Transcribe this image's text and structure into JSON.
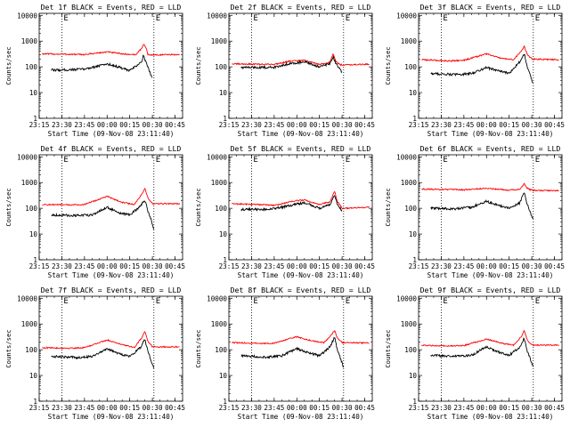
{
  "chart_data": [
    {
      "type": "line",
      "title": "Det 1f BLACK = Events, RED = LLD",
      "xlabel": "Start Time (09-Nov-08 23:11:40)",
      "ylabel": "Counts/sec",
      "x_ticks": [
        "23:15",
        "23:30",
        "23:45",
        "00:00",
        "00:15",
        "00:30",
        "00:45"
      ],
      "y_ticks": [
        "1",
        "10",
        "100",
        "1000",
        "10000"
      ],
      "y_scale": "log",
      "ylim": [
        1,
        12000
      ],
      "xlim": [
        "23:15",
        "00:50"
      ],
      "markers": [
        "23:30",
        "00:31"
      ],
      "corner_labels": [
        "E",
        "E"
      ],
      "series": [
        {
          "color": "#ff0000",
          "start": "23:17",
          "end": "00:48",
          "x": [
            "23:17",
            "23:45",
            "00:00",
            "00:12",
            "00:19",
            "00:23",
            "00:24",
            "00:26",
            "00:27",
            "00:30",
            "00:48"
          ],
          "y": [
            320,
            300,
            380,
            310,
            300,
            520,
            780,
            520,
            300,
            290,
            300
          ]
        },
        {
          "color": "#000000",
          "start": "23:23",
          "end": "00:30",
          "x": [
            "23:23",
            "23:30",
            "23:45",
            "00:00",
            "00:05",
            "00:15",
            "00:23",
            "00:24",
            "00:26",
            "00:28",
            "00:29",
            "00:30"
          ],
          "y": [
            75,
            75,
            82,
            130,
            110,
            70,
            160,
            270,
            140,
            70,
            50,
            40
          ]
        }
      ]
    },
    {
      "type": "line",
      "title": "Det 2f BLACK = Events, RED = LLD",
      "xlabel": "Start Time (09-Nov-08 23:11:40)",
      "ylabel": "Counts/sec",
      "x_ticks": [
        "23:15",
        "23:30",
        "23:45",
        "00:00",
        "00:15",
        "00:30",
        "00:45"
      ],
      "y_ticks": [
        "1",
        "10",
        "100",
        "1000",
        "10000"
      ],
      "y_scale": "log",
      "ylim": [
        1,
        12000
      ],
      "xlim": [
        "23:15",
        "00:50"
      ],
      "markers": [
        "23:30",
        "00:31"
      ],
      "corner_labels": [
        "E",
        "E"
      ],
      "series": [
        {
          "color": "#ff0000",
          "start": "23:17",
          "end": "00:48",
          "x": [
            "23:17",
            "23:45",
            "23:55",
            "00:05",
            "00:15",
            "00:22",
            "00:24",
            "00:26",
            "00:29",
            "00:48"
          ],
          "y": [
            130,
            125,
            165,
            180,
            125,
            150,
            320,
            160,
            120,
            125
          ]
        },
        {
          "color": "#000000",
          "start": "23:23",
          "end": "00:30",
          "x": [
            "23:23",
            "23:45",
            "23:55",
            "00:05",
            "00:15",
            "00:22",
            "00:24",
            "00:26",
            "00:28",
            "00:30"
          ],
          "y": [
            95,
            95,
            135,
            155,
            100,
            130,
            260,
            130,
            90,
            60
          ]
        }
      ]
    },
    {
      "type": "line",
      "title": "Det 3f BLACK = Events, RED = LLD",
      "xlabel": "Start Time (09-Nov-08 23:11:40)",
      "ylabel": "Counts/sec",
      "x_ticks": [
        "23:15",
        "23:30",
        "23:45",
        "00:00",
        "00:15",
        "00:30",
        "00:45"
      ],
      "y_ticks": [
        "1",
        "10",
        "100",
        "1000",
        "10000"
      ],
      "y_scale": "log",
      "ylim": [
        1,
        12000
      ],
      "xlim": [
        "23:15",
        "00:50"
      ],
      "markers": [
        "23:30",
        "00:31"
      ],
      "corner_labels": [
        "E",
        "E"
      ],
      "series": [
        {
          "color": "#ff0000",
          "start": "23:17",
          "end": "00:48",
          "x": [
            "23:17",
            "23:35",
            "23:45",
            "00:00",
            "00:10",
            "00:18",
            "00:23",
            "00:25",
            "00:27",
            "00:30",
            "00:48"
          ],
          "y": [
            190,
            170,
            180,
            320,
            210,
            190,
            420,
            620,
            300,
            200,
            190
          ]
        },
        {
          "color": "#000000",
          "start": "23:23",
          "end": "00:31",
          "x": [
            "23:23",
            "23:40",
            "23:50",
            "00:00",
            "00:08",
            "00:15",
            "00:22",
            "00:25",
            "00:27",
            "00:29",
            "00:31"
          ],
          "y": [
            55,
            50,
            55,
            95,
            70,
            55,
            160,
            330,
            100,
            50,
            20
          ]
        }
      ]
    },
    {
      "type": "line",
      "title": "Det 4f BLACK = Events, RED = LLD",
      "xlabel": "Start Time (09-Nov-08 23:11:40)",
      "ylabel": "Counts/sec",
      "x_ticks": [
        "23:15",
        "23:30",
        "23:45",
        "00:00",
        "00:15",
        "00:30",
        "00:45"
      ],
      "y_ticks": [
        "1",
        "10",
        "100",
        "1000",
        "10000"
      ],
      "y_scale": "log",
      "ylim": [
        1,
        12000
      ],
      "xlim": [
        "23:15",
        "00:50"
      ],
      "markers": [
        "23:30",
        "00:31"
      ],
      "corner_labels": [
        "E",
        "E"
      ],
      "series": [
        {
          "color": "#ff0000",
          "start": "23:17",
          "end": "00:48",
          "x": [
            "23:17",
            "23:35",
            "23:45",
            "00:00",
            "00:10",
            "00:18",
            "00:23",
            "00:25",
            "00:27",
            "00:30",
            "00:48"
          ],
          "y": [
            140,
            135,
            140,
            290,
            170,
            140,
            350,
            620,
            250,
            150,
            150
          ]
        },
        {
          "color": "#000000",
          "start": "23:23",
          "end": "00:31",
          "x": [
            "23:23",
            "23:40",
            "23:50",
            "00:00",
            "00:08",
            "00:15",
            "00:22",
            "00:25",
            "00:27",
            "00:29",
            "00:31"
          ],
          "y": [
            55,
            52,
            55,
            110,
            65,
            55,
            120,
            210,
            80,
            40,
            15
          ]
        }
      ]
    },
    {
      "type": "line",
      "title": "Det 5f BLACK = Events, RED = LLD",
      "xlabel": "Start Time (09-Nov-08 23:11:40)",
      "ylabel": "Counts/sec",
      "x_ticks": [
        "23:15",
        "23:30",
        "23:45",
        "00:00",
        "00:15",
        "00:30",
        "00:45"
      ],
      "y_ticks": [
        "1",
        "10",
        "100",
        "1000",
        "10000"
      ],
      "y_scale": "log",
      "ylim": [
        1,
        12000
      ],
      "xlim": [
        "23:15",
        "00:50"
      ],
      "markers": [
        "23:30",
        "00:31"
      ],
      "corner_labels": [
        "E",
        "E"
      ],
      "series": [
        {
          "color": "#ff0000",
          "start": "23:17",
          "end": "00:48",
          "x": [
            "23:17",
            "23:35",
            "23:45",
            "00:00",
            "00:05",
            "00:15",
            "00:22",
            "00:25",
            "00:27",
            "00:30",
            "00:48"
          ],
          "y": [
            150,
            140,
            130,
            200,
            210,
            140,
            180,
            450,
            180,
            100,
            110
          ]
        },
        {
          "color": "#000000",
          "start": "23:23",
          "end": "00:30",
          "x": [
            "23:23",
            "23:35",
            "23:45",
            "00:00",
            "00:05",
            "00:15",
            "00:22",
            "00:25",
            "00:27",
            "00:30"
          ],
          "y": [
            90,
            90,
            95,
            145,
            165,
            100,
            135,
            340,
            130,
            80
          ]
        }
      ]
    },
    {
      "type": "line",
      "title": "Det 6f BLACK = Events, RED = LLD",
      "xlabel": "Start Time (09-Nov-08 23:11:40)",
      "ylabel": "Counts/sec",
      "x_ticks": [
        "23:15",
        "23:30",
        "23:45",
        "00:00",
        "00:15",
        "00:30",
        "00:45"
      ],
      "y_ticks": [
        "1",
        "10",
        "100",
        "1000",
        "10000"
      ],
      "y_scale": "log",
      "ylim": [
        1,
        12000
      ],
      "xlim": [
        "23:15",
        "00:50"
      ],
      "markers": [
        "23:30",
        "00:31"
      ],
      "corner_labels": [
        "E",
        "E"
      ],
      "series": [
        {
          "color": "#ff0000",
          "start": "23:17",
          "end": "00:48",
          "x": [
            "23:17",
            "23:45",
            "00:00",
            "00:15",
            "00:22",
            "00:25",
            "00:27",
            "00:30",
            "00:48"
          ],
          "y": [
            560,
            520,
            600,
            510,
            550,
            900,
            600,
            500,
            480
          ]
        },
        {
          "color": "#000000",
          "start": "23:23",
          "end": "00:31",
          "x": [
            "23:23",
            "23:40",
            "23:50",
            "00:00",
            "00:08",
            "00:15",
            "00:22",
            "00:25",
            "00:27",
            "00:29",
            "00:31"
          ],
          "y": [
            100,
            95,
            110,
            185,
            130,
            100,
            160,
            430,
            140,
            70,
            35
          ]
        }
      ]
    },
    {
      "type": "line",
      "title": "Det 7f BLACK = Events, RED = LLD",
      "xlabel": "Start Time (09-Nov-08 23:11:40)",
      "ylabel": "Counts/sec",
      "x_ticks": [
        "23:15",
        "23:30",
        "23:45",
        "00:00",
        "00:15",
        "00:30",
        "00:45"
      ],
      "y_ticks": [
        "1",
        "10",
        "100",
        "1000",
        "10000"
      ],
      "y_scale": "log",
      "ylim": [
        1,
        12000
      ],
      "xlim": [
        "23:15",
        "00:50"
      ],
      "markers": [
        "23:30",
        "00:31"
      ],
      "corner_labels": [
        "E",
        "E"
      ],
      "series": [
        {
          "color": "#ff0000",
          "start": "23:17",
          "end": "00:48",
          "x": [
            "23:17",
            "23:35",
            "23:45",
            "00:00",
            "00:10",
            "00:18",
            "00:23",
            "00:25",
            "00:27",
            "00:30",
            "00:48"
          ],
          "y": [
            120,
            115,
            120,
            240,
            160,
            120,
            300,
            540,
            220,
            130,
            130
          ]
        },
        {
          "color": "#000000",
          "start": "23:23",
          "end": "00:31",
          "x": [
            "23:23",
            "23:40",
            "23:50",
            "00:00",
            "00:08",
            "00:15",
            "00:22",
            "00:25",
            "00:27",
            "00:29",
            "00:31"
          ],
          "y": [
            55,
            50,
            55,
            110,
            70,
            55,
            120,
            260,
            90,
            40,
            20
          ]
        }
      ]
    },
    {
      "type": "line",
      "title": "Det 8f BLACK = Events, RED = LLD",
      "xlabel": "Start Time (09-Nov-08 23:11:40)",
      "ylabel": "Counts/sec",
      "x_ticks": [
        "23:15",
        "23:30",
        "23:45",
        "00:00",
        "00:15",
        "00:30",
        "00:45"
      ],
      "y_ticks": [
        "1",
        "10",
        "100",
        "1000",
        "10000"
      ],
      "y_scale": "log",
      "ylim": [
        1,
        12000
      ],
      "xlim": [
        "23:15",
        "00:50"
      ],
      "markers": [
        "23:30",
        "00:31"
      ],
      "corner_labels": [
        "E",
        "E"
      ],
      "series": [
        {
          "color": "#ff0000",
          "start": "23:17",
          "end": "00:48",
          "x": [
            "23:17",
            "23:35",
            "23:45",
            "00:00",
            "00:10",
            "00:18",
            "00:23",
            "00:25",
            "00:27",
            "00:30",
            "00:48"
          ],
          "y": [
            190,
            175,
            180,
            320,
            220,
            190,
            380,
            560,
            280,
            190,
            180
          ]
        },
        {
          "color": "#000000",
          "start": "23:23",
          "end": "00:31",
          "x": [
            "23:23",
            "23:40",
            "23:50",
            "00:00",
            "00:08",
            "00:15",
            "00:22",
            "00:25",
            "00:27",
            "00:29",
            "00:31"
          ],
          "y": [
            58,
            52,
            58,
            110,
            75,
            58,
            130,
            310,
            95,
            45,
            20
          ]
        }
      ]
    },
    {
      "type": "line",
      "title": "Det 9f BLACK = Events, RED = LLD",
      "xlabel": "Start Time (09-Nov-08 23:11:40)",
      "ylabel": "Counts/sec",
      "x_ticks": [
        "23:15",
        "23:30",
        "23:45",
        "00:00",
        "00:15",
        "00:30",
        "00:45"
      ],
      "y_ticks": [
        "1",
        "10",
        "100",
        "1000",
        "10000"
      ],
      "y_scale": "log",
      "ylim": [
        1,
        12000
      ],
      "xlim": [
        "23:15",
        "00:50"
      ],
      "markers": [
        "23:30",
        "00:31"
      ],
      "corner_labels": [
        "E",
        "E"
      ],
      "series": [
        {
          "color": "#ff0000",
          "start": "23:17",
          "end": "00:48",
          "x": [
            "23:17",
            "23:35",
            "23:45",
            "00:00",
            "00:10",
            "00:18",
            "00:23",
            "00:25",
            "00:27",
            "00:30",
            "00:48"
          ],
          "y": [
            150,
            140,
            145,
            260,
            180,
            150,
            320,
            560,
            240,
            150,
            150
          ]
        },
        {
          "color": "#000000",
          "start": "23:23",
          "end": "00:31",
          "x": [
            "23:23",
            "23:40",
            "23:50",
            "00:00",
            "00:08",
            "00:15",
            "00:22",
            "00:25",
            "00:27",
            "00:29",
            "00:31"
          ],
          "y": [
            60,
            55,
            60,
            130,
            80,
            60,
            130,
            280,
            90,
            45,
            20
          ]
        }
      ]
    }
  ]
}
